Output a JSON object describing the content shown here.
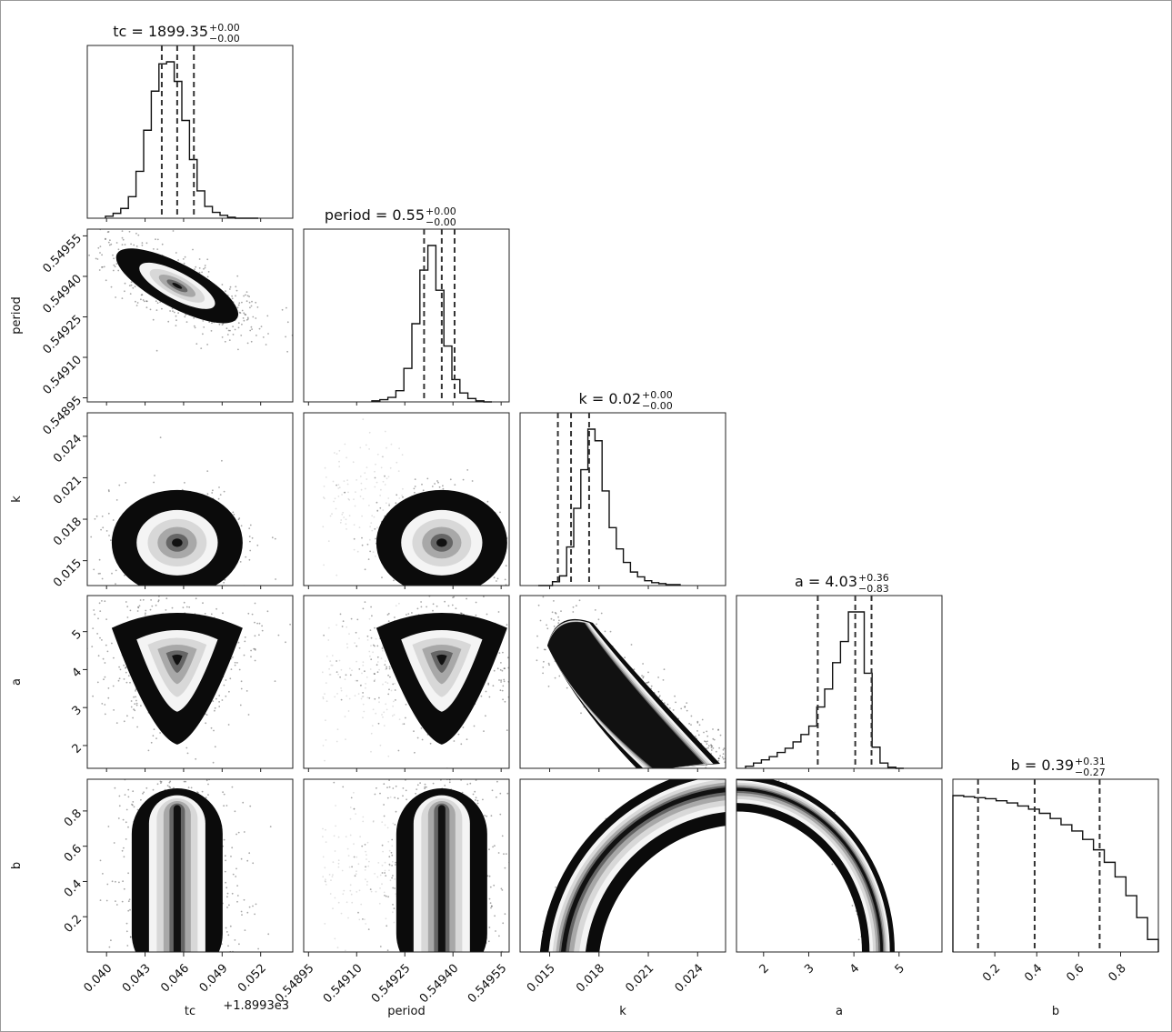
{
  "chart_data": {
    "type": "corner",
    "parameters": [
      {
        "name": "tc",
        "axis_label": "tc",
        "title_value": "1899.35",
        "err_plus": "+0.00",
        "err_minus": "−0.00",
        "range": [
          0.0385,
          0.0545
        ],
        "ticks": [
          0.04,
          0.043,
          0.046,
          0.049,
          0.052
        ],
        "tick_labels": [
          "0.040",
          "0.043",
          "0.046",
          "0.049",
          "0.052"
        ],
        "offset_label": "+1.8993e3",
        "quantiles": [
          0.0443,
          0.0455,
          0.0468
        ],
        "peak": 0.0455,
        "sigma": 0.0012
      },
      {
        "name": "period",
        "axis_label": "period",
        "title_value": "0.55",
        "err_plus": "+0.00",
        "err_minus": "−0.00",
        "range": [
          0.548935,
          0.549575
        ],
        "ticks": [
          0.54895,
          0.5491,
          0.54925,
          0.5494,
          0.54955
        ],
        "tick_labels": [
          "0.54895",
          "0.54910",
          "0.54925",
          "0.54940",
          "0.54955"
        ],
        "quantiles": [
          0.54931,
          0.549365,
          0.549405
        ],
        "peak": 0.549365,
        "sigma": 4e-05
      },
      {
        "name": "k",
        "axis_label": "k",
        "title_value": "0.02",
        "err_plus": "+0.00",
        "err_minus": "−0.00",
        "range": [
          0.0132,
          0.0257
        ],
        "ticks": [
          0.015,
          0.018,
          0.021,
          0.024
        ],
        "tick_labels": [
          "0.015",
          "0.018",
          "0.021",
          "0.024"
        ],
        "quantiles": [
          0.0155,
          0.0163,
          0.0174
        ],
        "peak": 0.0163,
        "sigma": 0.001
      },
      {
        "name": "a",
        "axis_label": "a",
        "title_value": "4.03",
        "err_plus": "+0.36",
        "err_minus": "−0.83",
        "range": [
          1.4,
          5.95
        ],
        "ticks": [
          2,
          3,
          4,
          5
        ],
        "tick_labels": [
          "2",
          "3",
          "4",
          "5"
        ],
        "quantiles": [
          3.2,
          4.03,
          4.39
        ],
        "peak": 4.3,
        "sigma": 0.6
      },
      {
        "name": "b",
        "axis_label": "b",
        "title_value": "0.39",
        "err_plus": "+0.31",
        "err_minus": "−0.27",
        "range": [
          0.0,
          0.98
        ],
        "ticks": [
          0.2,
          0.4,
          0.6,
          0.8
        ],
        "tick_labels": [
          "0.2",
          "0.4",
          "0.6",
          "0.8"
        ],
        "quantiles": [
          0.12,
          0.39,
          0.7
        ],
        "peak": 0.1,
        "sigma": 0.4
      }
    ],
    "marginal_histograms": [
      [
        2,
        5,
        10,
        22,
        48,
        90,
        130,
        158,
        160,
        140,
        100,
        60,
        28,
        12,
        6,
        3,
        1,
        0,
        0,
        0
      ],
      [
        1,
        2,
        4,
        10,
        30,
        70,
        118,
        140,
        100,
        50,
        20,
        8,
        3,
        1,
        0
      ],
      [
        0,
        0,
        4,
        10,
        40,
        80,
        120,
        162,
        150,
        98,
        60,
        38,
        24,
        14,
        9,
        5,
        3,
        2,
        1,
        1
      ],
      [
        2,
        5,
        8,
        11,
        15,
        19,
        25,
        32,
        40,
        58,
        75,
        100,
        120,
        148,
        148,
        90,
        20,
        5,
        1,
        0
      ],
      [
        150,
        149,
        148,
        147,
        145,
        143,
        140,
        137,
        133,
        128,
        122,
        116,
        108,
        98,
        86,
        72,
        54,
        33,
        12
      ]
    ]
  }
}
